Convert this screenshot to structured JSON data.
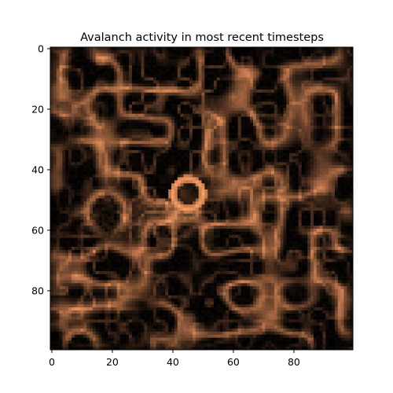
{
  "chart_data": {
    "type": "heatmap",
    "title": "Avalanch activity in most recent timesteps",
    "grid_size": [
      100,
      100
    ],
    "colormap": "copper",
    "xlim": [
      -0.5,
      99.5
    ],
    "ylim": [
      99.5,
      -0.5
    ],
    "x_ticks": [
      0,
      20,
      40,
      60,
      80
    ],
    "y_ticks": [
      0,
      20,
      40,
      60,
      80
    ],
    "x_tick_labels": [
      "0",
      "20",
      "40",
      "60",
      "80"
    ],
    "y_tick_labels": [
      "0",
      "20",
      "40",
      "60",
      "80"
    ],
    "xlabel": "",
    "ylabel": "",
    "grid": false,
    "value_range": [
      0,
      1
    ],
    "activity_summary": {
      "bright_ring_center": [
        45,
        48
      ],
      "bright_ring_radius": 5,
      "high_activity_band_rows": [
        50,
        62
      ],
      "high_activity_band_cols": [
        10,
        55
      ],
      "dark_regions_centers": [
        [
          5,
          28
        ],
        [
          18,
          60
        ],
        [
          50,
          45
        ],
        [
          82,
          80
        ],
        [
          88,
          30
        ],
        [
          30,
          85
        ]
      ]
    }
  }
}
